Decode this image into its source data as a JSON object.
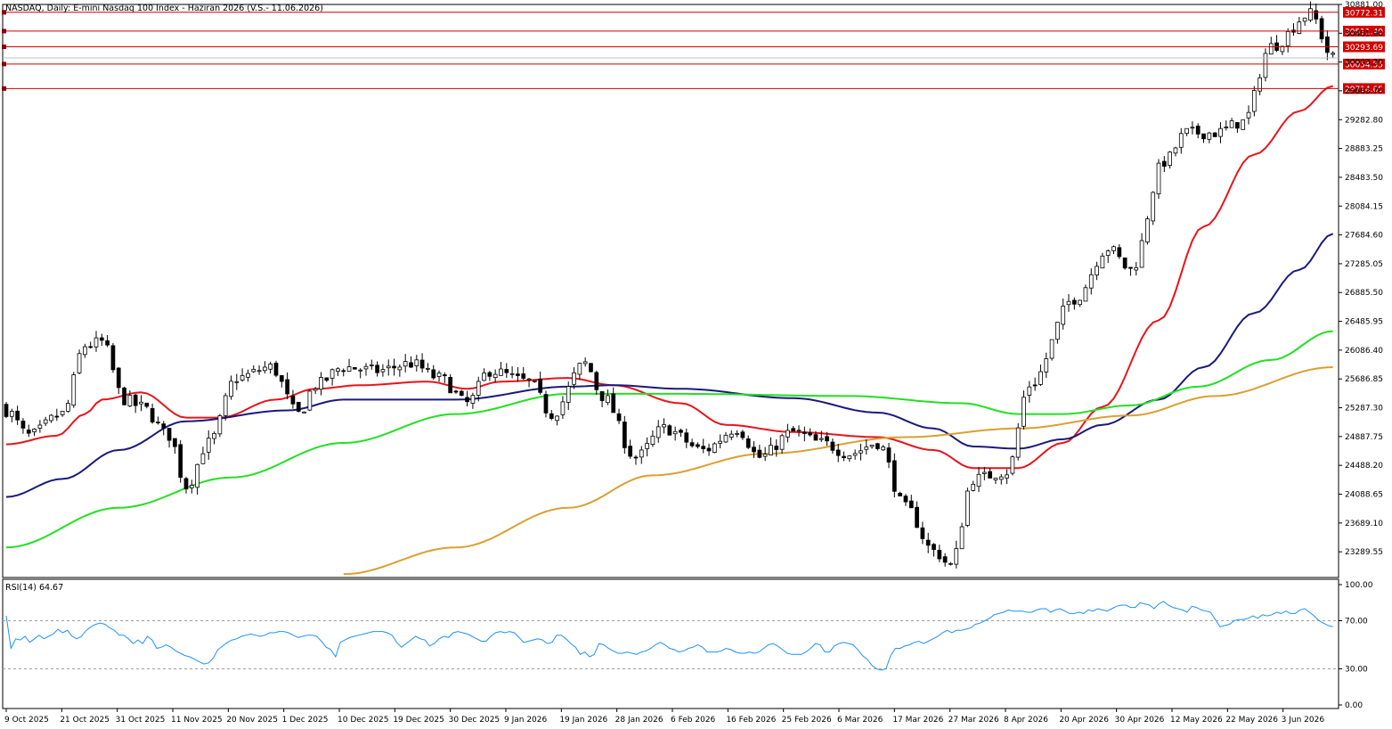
{
  "header": {
    "title": "NASDAQ, Daily:  E-mini Nasdaq 100 Index - Haziran 2026 (V.S.- 11.06.2026)"
  },
  "rsi_panel": {
    "label": "RSI(14) 64.67"
  },
  "colors": {
    "bull_candle": "#ffffff",
    "bear_candle": "#000000",
    "ma20": "#e8141c",
    "ma50": "#1a1a7a",
    "ma100": "#22e022",
    "ma200": "#d9a030",
    "level_line": "#cc0000",
    "rsi_line": "#1e90ff",
    "level_box": "#d40000"
  },
  "chart_data": [
    {
      "type": "candlestick",
      "title": "NASDAQ, Daily:  E-mini Nasdaq 100 Index - Haziran 2026 (V.S.- 11.06.2026)",
      "y_ticks": [
        "30881.00",
        "30481.90",
        "30083.20",
        "29683.70",
        "29282.80",
        "28883.25",
        "28483.50",
        "28084.15",
        "27684.60",
        "27285.05",
        "26885.50",
        "26485.95",
        "26086.40",
        "25686.85",
        "25287.30",
        "24887.75",
        "24488.20",
        "24088.65",
        "23689.10",
        "23289.55"
      ],
      "ylim": [
        22970,
        30881
      ],
      "x_ticks": [
        "9 Oct 2025",
        "21 Oct 2025",
        "31 Oct 2025",
        "11 Nov 2025",
        "20 Nov 2025",
        "1 Dec 2025",
        "10 Dec 2025",
        "19 Dec 2025",
        "30 Dec 2025",
        "9 Jan 2026",
        "19 Jan 2026",
        "28 Jan 2026",
        "6 Feb 2026",
        "16 Feb 2026",
        "25 Feb 2026",
        "6 Mar 2026",
        "17 Mar 2026",
        "27 Mar 2026",
        "8 Apr 2026",
        "20 Apr 2026",
        "30 Apr 2026",
        "12 May 2026",
        "22 May 2026",
        "3 Jun 2026"
      ],
      "bars_per_tick": 8,
      "horizontal_levels": [
        {
          "value": 30772.31,
          "label": "30772.31"
        },
        {
          "value": 30511.4,
          "label": "30511.40"
        },
        {
          "value": 30293.69,
          "label": "30293.69"
        },
        {
          "value": 30054.55,
          "label": "30054.55"
        },
        {
          "value": 29714.65,
          "label": "29714.65"
        }
      ],
      "current_price": 30140,
      "close_anchors": [
        [
          0,
          25250
        ],
        [
          4,
          24900
        ],
        [
          10,
          25200
        ],
        [
          14,
          26150
        ],
        [
          17,
          26200
        ],
        [
          21,
          25400
        ],
        [
          24,
          25300
        ],
        [
          29,
          24900
        ],
        [
          32,
          24200
        ],
        [
          36,
          24800
        ],
        [
          41,
          25700
        ],
        [
          47,
          25850
        ],
        [
          52,
          25200
        ],
        [
          55,
          25600
        ],
        [
          60,
          25850
        ],
        [
          66,
          25800
        ],
        [
          72,
          25900
        ],
        [
          77,
          25700
        ],
        [
          82,
          25350
        ],
        [
          86,
          25800
        ],
        [
          93,
          25650
        ],
        [
          97,
          25200
        ],
        [
          103,
          25900
        ],
        [
          106,
          25450
        ],
        [
          112,
          24600
        ],
        [
          117,
          25000
        ],
        [
          124,
          24700
        ],
        [
          130,
          25000
        ],
        [
          134,
          24600
        ],
        [
          140,
          24950
        ],
        [
          145,
          24800
        ],
        [
          150,
          24650
        ],
        [
          155,
          24800
        ],
        [
          160,
          23900
        ],
        [
          165,
          23300
        ],
        [
          168,
          23100
        ],
        [
          172,
          24300
        ],
        [
          178,
          24400
        ],
        [
          182,
          25600
        ],
        [
          190,
          26800
        ],
        [
          196,
          27500
        ],
        [
          200,
          27200
        ],
        [
          206,
          28700
        ],
        [
          210,
          29100
        ],
        [
          215,
          29100
        ],
        [
          220,
          29250
        ],
        [
          225,
          30300
        ],
        [
          232,
          30750
        ],
        [
          236,
          30140
        ]
      ],
      "ma_series": [
        {
          "name": "MA20",
          "anchors": [
            [
              0,
              24780
            ],
            [
              9,
              24900
            ],
            [
              14,
              25200
            ],
            [
              17,
              25400
            ],
            [
              24,
              25500
            ],
            [
              32,
              25150
            ],
            [
              38,
              25150
            ],
            [
              48,
              25400
            ],
            [
              55,
              25550
            ],
            [
              63,
              25600
            ],
            [
              75,
              25650
            ],
            [
              82,
              25550
            ],
            [
              88,
              25650
            ],
            [
              100,
              25700
            ],
            [
              108,
              25600
            ],
            [
              120,
              25350
            ],
            [
              128,
              25050
            ],
            [
              140,
              24950
            ],
            [
              155,
              24880
            ],
            [
              165,
              24700
            ],
            [
              172,
              24450
            ],
            [
              180,
              24450
            ],
            [
              188,
              24800
            ],
            [
              195,
              25300
            ],
            [
              205,
              26500
            ],
            [
              213,
              27800
            ],
            [
              222,
              28800
            ],
            [
              230,
              29400
            ],
            [
              236,
              29750
            ]
          ]
        },
        {
          "name": "MA50",
          "anchors": [
            [
              0,
              24050
            ],
            [
              10,
              24300
            ],
            [
              20,
              24700
            ],
            [
              32,
              25100
            ],
            [
              50,
              25250
            ],
            [
              60,
              25400
            ],
            [
              80,
              25400
            ],
            [
              100,
              25580
            ],
            [
              108,
              25600
            ],
            [
              120,
              25550
            ],
            [
              140,
              25420
            ],
            [
              155,
              25220
            ],
            [
              165,
              25000
            ],
            [
              172,
              24750
            ],
            [
              180,
              24720
            ],
            [
              188,
              24850
            ],
            [
              195,
              25050
            ],
            [
              205,
              25400
            ],
            [
              213,
              25850
            ],
            [
              222,
              26600
            ],
            [
              230,
              27200
            ],
            [
              236,
              27700
            ]
          ]
        },
        {
          "name": "MA100",
          "anchors": [
            [
              0,
              23350
            ],
            [
              20,
              23900
            ],
            [
              40,
              24320
            ],
            [
              60,
              24800
            ],
            [
              80,
              25200
            ],
            [
              100,
              25480
            ],
            [
              120,
              25480
            ],
            [
              150,
              25450
            ],
            [
              170,
              25350
            ],
            [
              180,
              25200
            ],
            [
              188,
              25200
            ],
            [
              200,
              25320
            ],
            [
              212,
              25580
            ],
            [
              225,
              25950
            ],
            [
              236,
              26350
            ]
          ]
        },
        {
          "name": "MA200",
          "anchors": [
            [
              60,
              22980
            ],
            [
              80,
              23350
            ],
            [
              100,
              23900
            ],
            [
              115,
              24350
            ],
            [
              135,
              24650
            ],
            [
              160,
              24880
            ],
            [
              180,
              25000
            ],
            [
              200,
              25180
            ],
            [
              215,
              25450
            ],
            [
              236,
              25850
            ]
          ]
        }
      ]
    },
    {
      "type": "line",
      "title": "RSI(14) 64.67",
      "series": [
        {
          "name": "RSI(14)",
          "values": [
            74,
            47,
            55,
            54,
            57,
            52,
            55,
            58,
            55,
            57,
            59,
            63,
            60,
            62,
            57,
            55,
            57,
            62,
            65,
            67,
            68,
            67,
            64,
            62,
            58,
            58,
            55,
            51,
            54,
            51,
            57,
            54,
            47,
            48,
            50,
            48,
            45,
            43,
            41,
            40,
            38,
            36,
            34,
            35,
            39,
            46,
            49,
            52,
            54,
            55,
            57,
            58,
            59,
            58,
            57,
            58,
            60,
            60,
            61,
            61,
            60,
            58,
            56,
            57,
            58,
            58,
            57,
            53,
            48,
            46,
            40,
            52,
            54,
            56,
            57,
            58,
            59,
            60,
            61,
            61,
            61,
            60,
            58,
            52,
            48,
            51,
            54,
            57,
            55,
            54,
            49,
            51,
            55,
            57,
            56,
            60,
            61,
            60,
            59,
            57,
            55,
            53,
            53,
            57,
            60,
            61,
            60,
            61,
            60,
            56,
            52,
            53,
            54,
            55,
            54,
            51,
            52,
            58,
            58,
            55,
            51,
            48,
            42,
            44,
            40,
            42,
            51,
            50,
            47,
            45,
            43,
            43,
            44,
            43,
            42,
            44,
            45,
            47,
            50,
            52,
            50,
            47,
            46,
            44,
            45,
            47,
            48,
            50,
            48,
            44,
            44,
            44,
            45,
            47,
            46,
            44,
            43,
            43,
            44,
            43,
            44,
            47,
            50,
            51,
            49,
            46,
            43,
            42,
            42,
            42,
            44,
            47,
            51,
            50,
            44,
            44,
            49,
            51,
            52,
            51,
            50,
            46,
            41,
            38,
            33,
            30,
            29,
            30,
            41,
            47,
            47,
            49,
            50,
            52,
            53,
            51,
            53,
            55,
            57,
            60,
            62,
            60,
            62,
            62,
            63,
            64,
            67,
            68,
            70,
            72,
            75,
            76,
            77,
            79,
            78,
            78,
            78,
            77,
            77,
            79,
            80,
            80,
            77,
            79,
            80,
            78,
            76,
            76,
            77,
            76,
            79,
            78,
            80,
            79,
            78,
            80,
            82,
            83,
            83,
            81,
            81,
            85,
            84,
            83,
            80,
            84,
            86,
            83,
            81,
            80,
            79,
            77,
            82,
            81,
            79,
            78,
            77,
            71,
            65,
            66,
            67,
            70,
            71,
            71,
            72,
            74,
            72,
            75,
            74,
            75,
            77,
            76,
            78,
            76,
            76,
            79,
            80,
            77,
            74,
            70,
            68,
            66,
            65
          ]
        }
      ],
      "ylim": [
        0,
        100
      ],
      "y_ticks": [
        "100.00",
        "70.00",
        "30.00",
        "0.00"
      ],
      "guides": [
        70,
        30
      ]
    }
  ]
}
